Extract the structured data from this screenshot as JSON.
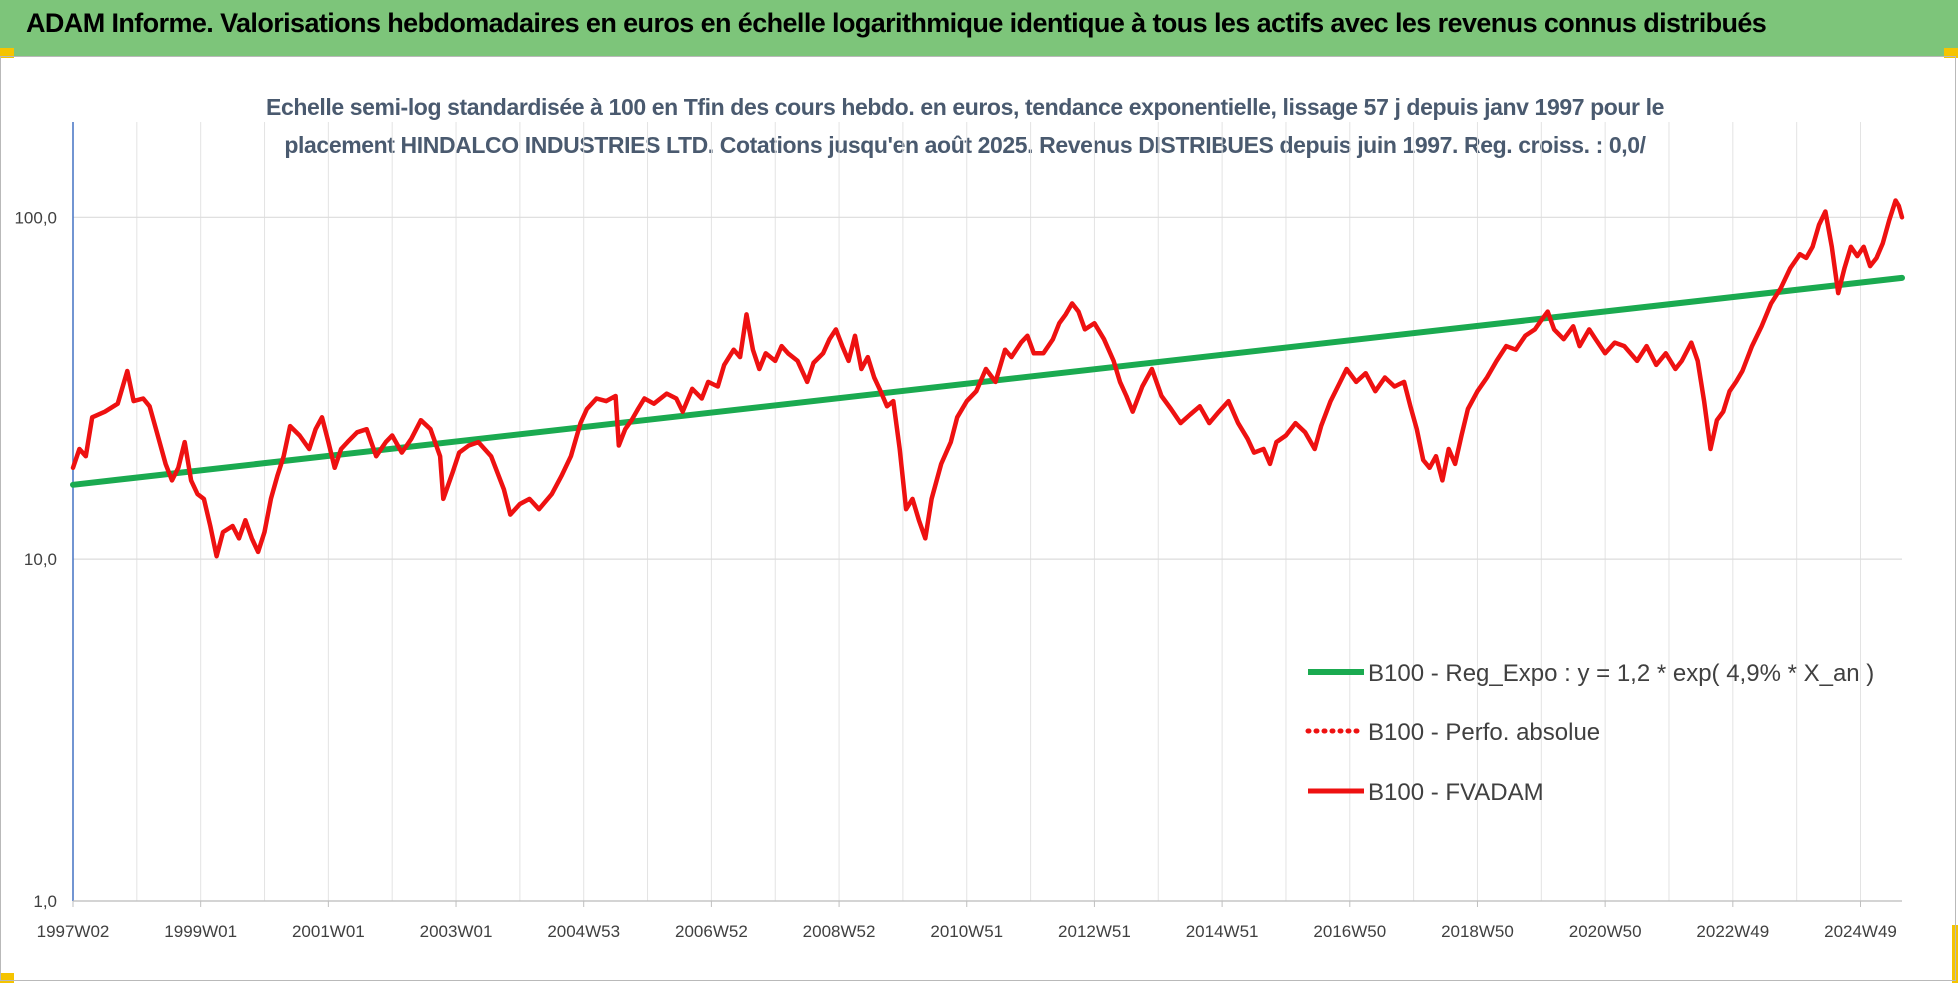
{
  "header": {
    "title": "ADAM Informe. Valorisations hebdomadaires en euros en échelle logarithmique identique à tous les actifs avec les revenus connus distribués"
  },
  "chart_data": {
    "type": "line",
    "title_line1": "Echelle semi-log standardisée à 100 en Tfin des cours hebdo. en euros, tendance exponentielle, lissage 57 j depuis janv 1997 pour le",
    "title_line2": "placement HINDALCO INDUSTRIES LTD. Cotations jusqu'en août 2025.  Revenus DISTRIBUES depuis juin 1997.  Reg. croiss. : 0,0/",
    "y_scale": "log",
    "ylim": [
      1,
      190
    ],
    "xlim": [
      1997.0,
      2025.65
    ],
    "grid": true,
    "legend_position": "right",
    "y_ticks": [
      {
        "value": 100,
        "label": "100,0"
      },
      {
        "value": 10,
        "label": "10,0"
      },
      {
        "value": 1,
        "label": "1,0"
      }
    ],
    "x_ticks": [
      {
        "value": 1997.0,
        "label": "1997W02"
      },
      {
        "value": 1999.0,
        "label": "1999W01"
      },
      {
        "value": 2001.0,
        "label": "2001W01"
      },
      {
        "value": 2003.0,
        "label": "2003W01"
      },
      {
        "value": 2005.0,
        "label": "2004W53"
      },
      {
        "value": 2007.0,
        "label": "2006W52"
      },
      {
        "value": 2009.0,
        "label": "2008W52"
      },
      {
        "value": 2011.0,
        "label": "2010W51"
      },
      {
        "value": 2013.0,
        "label": "2012W51"
      },
      {
        "value": 2015.0,
        "label": "2014W51"
      },
      {
        "value": 2017.0,
        "label": "2016W50"
      },
      {
        "value": 2019.0,
        "label": "2018W50"
      },
      {
        "value": 2021.0,
        "label": "2020W50"
      },
      {
        "value": 2023.0,
        "label": "2022W49"
      },
      {
        "value": 2025.0,
        "label": "2024W49"
      }
    ],
    "series": [
      {
        "name": "B100 - Reg_Expo : y = 1,2 * exp( 4,9% *  X_an )",
        "color": "#1aaa50",
        "style": "solid",
        "points": [
          [
            1997.0,
            16.5
          ],
          [
            2025.65,
            66.5
          ]
        ]
      },
      {
        "name": "B100 - Perfo. absolue",
        "color": "#ee1111",
        "style": "dotted",
        "points": []
      },
      {
        "name": "B100 - FVADAM",
        "color": "#ee1111",
        "style": "solid",
        "points": [
          [
            1997.0,
            18.5
          ],
          [
            1997.1,
            21.0
          ],
          [
            1997.2,
            20.0
          ],
          [
            1997.3,
            26.0
          ],
          [
            1997.5,
            27.0
          ],
          [
            1997.7,
            28.5
          ],
          [
            1997.85,
            35.5
          ],
          [
            1997.95,
            29.0
          ],
          [
            1998.1,
            29.5
          ],
          [
            1998.2,
            28.0
          ],
          [
            1998.3,
            24.0
          ],
          [
            1998.45,
            19.0
          ],
          [
            1998.55,
            17.0
          ],
          [
            1998.65,
            18.5
          ],
          [
            1998.75,
            22.0
          ],
          [
            1998.85,
            17.0
          ],
          [
            1998.95,
            15.5
          ],
          [
            1999.05,
            15.0
          ],
          [
            1999.15,
            12.5
          ],
          [
            1999.25,
            10.2
          ],
          [
            1999.35,
            12.0
          ],
          [
            1999.5,
            12.5
          ],
          [
            1999.6,
            11.5
          ],
          [
            1999.7,
            13.0
          ],
          [
            1999.8,
            11.5
          ],
          [
            1999.9,
            10.5
          ],
          [
            2000.0,
            12.0
          ],
          [
            2000.1,
            15.0
          ],
          [
            2000.2,
            17.5
          ],
          [
            2000.3,
            20.0
          ],
          [
            2000.4,
            24.5
          ],
          [
            2000.55,
            23.0
          ],
          [
            2000.7,
            21.0
          ],
          [
            2000.8,
            24.0
          ],
          [
            2000.9,
            26.0
          ],
          [
            2001.0,
            22.0
          ],
          [
            2001.1,
            18.5
          ],
          [
            2001.2,
            21.0
          ],
          [
            2001.3,
            22.0
          ],
          [
            2001.45,
            23.5
          ],
          [
            2001.6,
            24.0
          ],
          [
            2001.75,
            20.0
          ],
          [
            2001.9,
            22.0
          ],
          [
            2002.0,
            23.0
          ],
          [
            2002.15,
            20.5
          ],
          [
            2002.3,
            22.5
          ],
          [
            2002.45,
            25.5
          ],
          [
            2002.6,
            24.0
          ],
          [
            2002.75,
            20.0
          ],
          [
            2002.8,
            15.0
          ],
          [
            2002.95,
            18.0
          ],
          [
            2003.05,
            20.5
          ],
          [
            2003.2,
            21.5
          ],
          [
            2003.35,
            22.0
          ],
          [
            2003.55,
            20.0
          ],
          [
            2003.75,
            16.0
          ],
          [
            2003.85,
            13.5
          ],
          [
            2004.0,
            14.5
          ],
          [
            2004.15,
            15.0
          ],
          [
            2004.3,
            14.0
          ],
          [
            2004.5,
            15.5
          ],
          [
            2004.65,
            17.5
          ],
          [
            2004.8,
            20.0
          ],
          [
            2004.95,
            25.0
          ],
          [
            2005.05,
            27.5
          ],
          [
            2005.2,
            29.5
          ],
          [
            2005.35,
            29.0
          ],
          [
            2005.5,
            30.0
          ],
          [
            2005.55,
            21.5
          ],
          [
            2005.65,
            24.0
          ],
          [
            2005.75,
            25.5
          ],
          [
            2005.85,
            27.5
          ],
          [
            2005.95,
            29.5
          ],
          [
            2006.1,
            28.5
          ],
          [
            2006.3,
            30.5
          ],
          [
            2006.45,
            29.5
          ],
          [
            2006.55,
            27.0
          ],
          [
            2006.7,
            31.5
          ],
          [
            2006.85,
            29.5
          ],
          [
            2006.95,
            33.0
          ],
          [
            2007.1,
            32.0
          ],
          [
            2007.2,
            37.0
          ],
          [
            2007.35,
            41.0
          ],
          [
            2007.45,
            39.0
          ],
          [
            2007.55,
            52.0
          ],
          [
            2007.65,
            41.0
          ],
          [
            2007.75,
            36.0
          ],
          [
            2007.85,
            40.0
          ],
          [
            2008.0,
            38.0
          ],
          [
            2008.1,
            42.0
          ],
          [
            2008.2,
            40.0
          ],
          [
            2008.35,
            38.0
          ],
          [
            2008.5,
            33.0
          ],
          [
            2008.6,
            37.5
          ],
          [
            2008.75,
            40.0
          ],
          [
            2008.85,
            44.0
          ],
          [
            2008.95,
            47.0
          ],
          [
            2009.05,
            42.0
          ],
          [
            2009.15,
            38.0
          ],
          [
            2009.25,
            45.0
          ],
          [
            2009.35,
            36.0
          ],
          [
            2009.45,
            39.0
          ],
          [
            2009.55,
            34.0
          ],
          [
            2009.65,
            31.0
          ],
          [
            2009.75,
            28.0
          ],
          [
            2009.85,
            29.0
          ],
          [
            2009.95,
            21.0
          ],
          [
            2010.05,
            14.0
          ],
          [
            2010.15,
            15.0
          ],
          [
            2010.25,
            13.0
          ],
          [
            2010.35,
            11.5
          ],
          [
            2010.45,
            15.0
          ],
          [
            2010.6,
            19.0
          ],
          [
            2010.75,
            22.0
          ],
          [
            2010.85,
            26.0
          ],
          [
            2011.0,
            29.0
          ],
          [
            2011.15,
            31.0
          ],
          [
            2011.3,
            36.0
          ],
          [
            2011.45,
            33.0
          ],
          [
            2011.6,
            41.0
          ],
          [
            2011.7,
            39.0
          ],
          [
            2011.85,
            43.0
          ],
          [
            2011.95,
            45.0
          ],
          [
            2012.05,
            40.0
          ],
          [
            2012.2,
            40.0
          ],
          [
            2012.35,
            44.0
          ],
          [
            2012.45,
            49.0
          ],
          [
            2012.55,
            52.0
          ],
          [
            2012.65,
            56.0
          ],
          [
            2012.75,
            53.0
          ],
          [
            2012.85,
            47.0
          ],
          [
            2013.0,
            49.0
          ],
          [
            2013.15,
            44.0
          ],
          [
            2013.3,
            38.0
          ],
          [
            2013.4,
            33.0
          ],
          [
            2013.5,
            30.0
          ],
          [
            2013.6,
            27.0
          ],
          [
            2013.75,
            32.0
          ],
          [
            2013.9,
            36.0
          ],
          [
            2014.05,
            30.0
          ],
          [
            2014.2,
            27.5
          ],
          [
            2014.35,
            25.0
          ],
          [
            2014.5,
            26.5
          ],
          [
            2014.65,
            28.0
          ],
          [
            2014.8,
            25.0
          ],
          [
            2014.95,
            27.0
          ],
          [
            2015.1,
            29.0
          ],
          [
            2015.25,
            25.0
          ],
          [
            2015.4,
            22.5
          ],
          [
            2015.5,
            20.5
          ],
          [
            2015.65,
            21.0
          ],
          [
            2015.75,
            19.0
          ],
          [
            2015.85,
            22.0
          ],
          [
            2016.0,
            23.0
          ],
          [
            2016.15,
            25.0
          ],
          [
            2016.3,
            23.5
          ],
          [
            2016.45,
            21.0
          ],
          [
            2016.55,
            24.5
          ],
          [
            2016.7,
            29.0
          ],
          [
            2016.85,
            33.0
          ],
          [
            2016.95,
            36.0
          ],
          [
            2017.1,
            33.0
          ],
          [
            2017.25,
            35.0
          ],
          [
            2017.4,
            31.0
          ],
          [
            2017.55,
            34.0
          ],
          [
            2017.7,
            32.0
          ],
          [
            2017.85,
            33.0
          ],
          [
            2017.95,
            28.0
          ],
          [
            2018.05,
            24.0
          ],
          [
            2018.15,
            19.5
          ],
          [
            2018.25,
            18.5
          ],
          [
            2018.35,
            20.0
          ],
          [
            2018.45,
            17.0
          ],
          [
            2018.55,
            21.0
          ],
          [
            2018.65,
            19.0
          ],
          [
            2018.75,
            23.0
          ],
          [
            2018.85,
            27.5
          ],
          [
            2019.0,
            31.0
          ],
          [
            2019.15,
            34.0
          ],
          [
            2019.3,
            38.0
          ],
          [
            2019.45,
            42.0
          ],
          [
            2019.6,
            41.0
          ],
          [
            2019.75,
            45.0
          ],
          [
            2019.9,
            47.0
          ],
          [
            2020.0,
            50.0
          ],
          [
            2020.1,
            53.0
          ],
          [
            2020.2,
            47.0
          ],
          [
            2020.35,
            44.0
          ],
          [
            2020.5,
            48.0
          ],
          [
            2020.6,
            42.0
          ],
          [
            2020.75,
            47.0
          ],
          [
            2020.85,
            44.0
          ],
          [
            2021.0,
            40.0
          ],
          [
            2021.15,
            43.0
          ],
          [
            2021.3,
            42.0
          ],
          [
            2021.5,
            38.0
          ],
          [
            2021.65,
            42.0
          ],
          [
            2021.8,
            37.0
          ],
          [
            2021.95,
            40.0
          ],
          [
            2022.1,
            36.0
          ],
          [
            2022.2,
            38.0
          ],
          [
            2022.35,
            43.0
          ],
          [
            2022.45,
            38.0
          ],
          [
            2022.55,
            29.0
          ],
          [
            2022.65,
            21.0
          ],
          [
            2022.75,
            25.5
          ],
          [
            2022.85,
            27.0
          ],
          [
            2022.95,
            31.0
          ],
          [
            2023.05,
            33.0
          ],
          [
            2023.15,
            35.5
          ],
          [
            2023.3,
            42.0
          ],
          [
            2023.45,
            48.0
          ],
          [
            2023.6,
            56.0
          ],
          [
            2023.75,
            62.0
          ],
          [
            2023.9,
            71.0
          ],
          [
            2024.05,
            78.0
          ],
          [
            2024.15,
            76.0
          ],
          [
            2024.25,
            82.0
          ],
          [
            2024.35,
            95.0
          ],
          [
            2024.45,
            104.0
          ],
          [
            2024.55,
            82.0
          ],
          [
            2024.65,
            60.0
          ],
          [
            2024.75,
            71.0
          ],
          [
            2024.85,
            82.0
          ],
          [
            2024.95,
            77.0
          ],
          [
            2025.05,
            82.0
          ],
          [
            2025.15,
            72.0
          ],
          [
            2025.25,
            76.0
          ],
          [
            2025.35,
            84.0
          ],
          [
            2025.45,
            98.0
          ],
          [
            2025.55,
            112.0
          ],
          [
            2025.6,
            108.0
          ],
          [
            2025.65,
            100.0
          ]
        ]
      }
    ],
    "legend": [
      "B100 - Reg_Expo : y = 1,2 * exp( 4,9% *  X_an )",
      "B100 - Perfo. absolue",
      "B100 - FVADAM"
    ]
  }
}
